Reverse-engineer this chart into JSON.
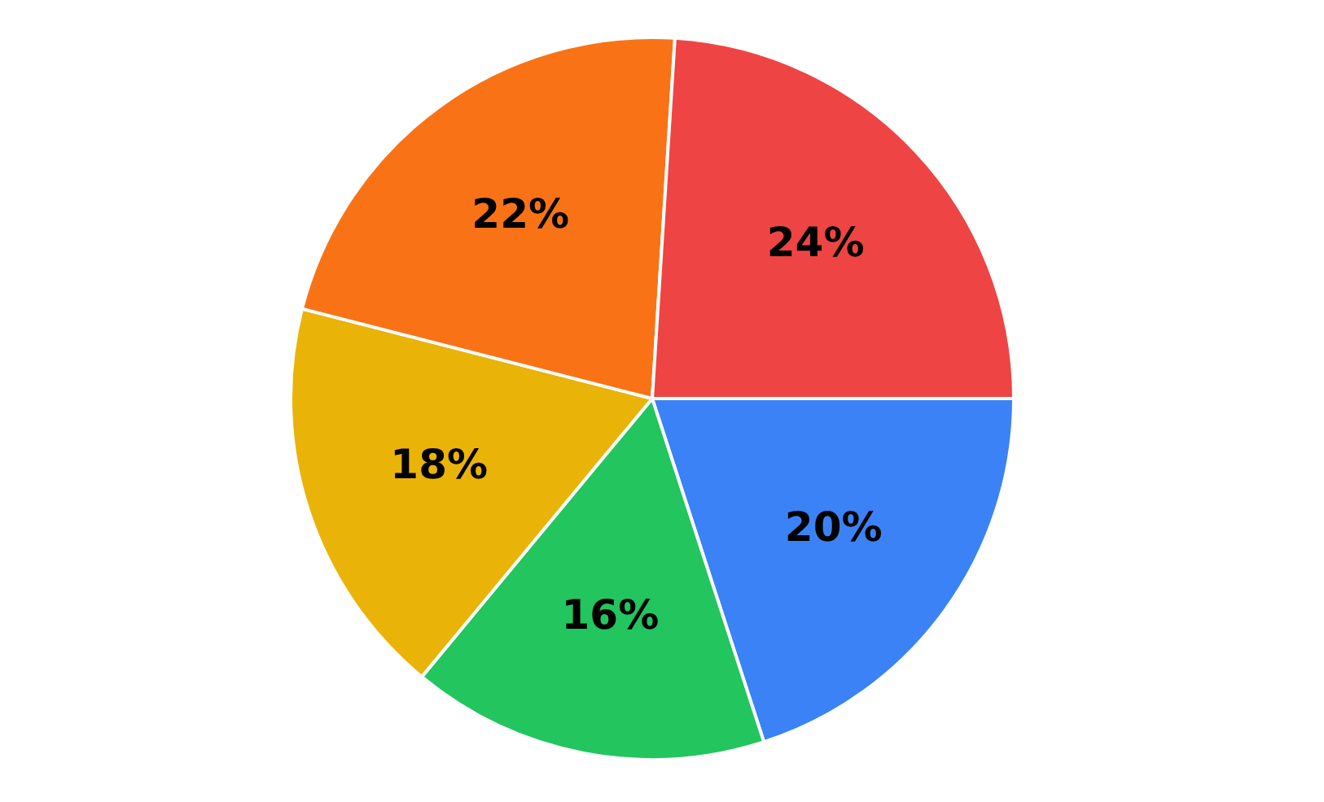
{
  "chart_data": {
    "type": "pie",
    "categories": [
      null,
      null,
      null,
      null,
      null
    ],
    "values": [
      20,
      16,
      18,
      22,
      24
    ],
    "colors": [
      "#3b82f6",
      "#22c55e",
      "#eab308",
      "#f97316",
      "#ef4444"
    ],
    "value_labels": [
      "20%",
      "16%",
      "18%",
      "22%",
      "24%"
    ],
    "legend": false
  }
}
